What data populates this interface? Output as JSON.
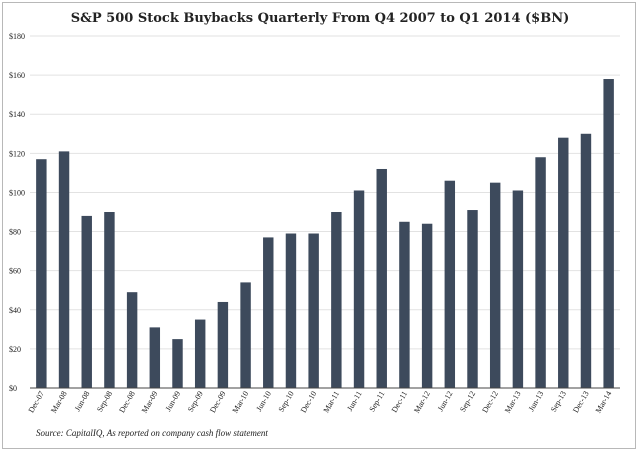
{
  "chart_data": {
    "type": "bar",
    "title": "S&P 500 Stock Buybacks Quarterly From Q4 2007 to Q1 2014 ($BN)",
    "xlabel": "",
    "ylabel": "",
    "ylim": [
      0,
      180
    ],
    "ytick_values": [
      0,
      20,
      40,
      60,
      80,
      100,
      120,
      140,
      160,
      180
    ],
    "ytick_labels": [
      "$0",
      "$20",
      "$40",
      "$60",
      "$80",
      "$100",
      "$120",
      "$140",
      "$160",
      "$180"
    ],
    "grid": true,
    "bar_color": "#3d4a5c",
    "categories": [
      "Dec-07",
      "Mar-08",
      "Jun-08",
      "Sep-08",
      "Dec-08",
      "Mar-09",
      "Jun-09",
      "Sep-09",
      "Dec-09",
      "Mar-10",
      "Jun-10",
      "Sep-10",
      "Dec-10",
      "Mar-11",
      "Jun-11",
      "Sep-11",
      "Dec-11",
      "Mar-12",
      "Jun-12",
      "Sep-12",
      "Dec-12",
      "Mar-13",
      "Jun-13",
      "Sep-13",
      "Dec-13",
      "Mar-14"
    ],
    "values": [
      117,
      121,
      88,
      90,
      49,
      31,
      25,
      35,
      44,
      54,
      77,
      79,
      79,
      90,
      101,
      112,
      85,
      84,
      106,
      91,
      105,
      101,
      118,
      128,
      130,
      158
    ]
  },
  "source_note": "Source: CapitalIQ, As reported on company cash flow statement"
}
